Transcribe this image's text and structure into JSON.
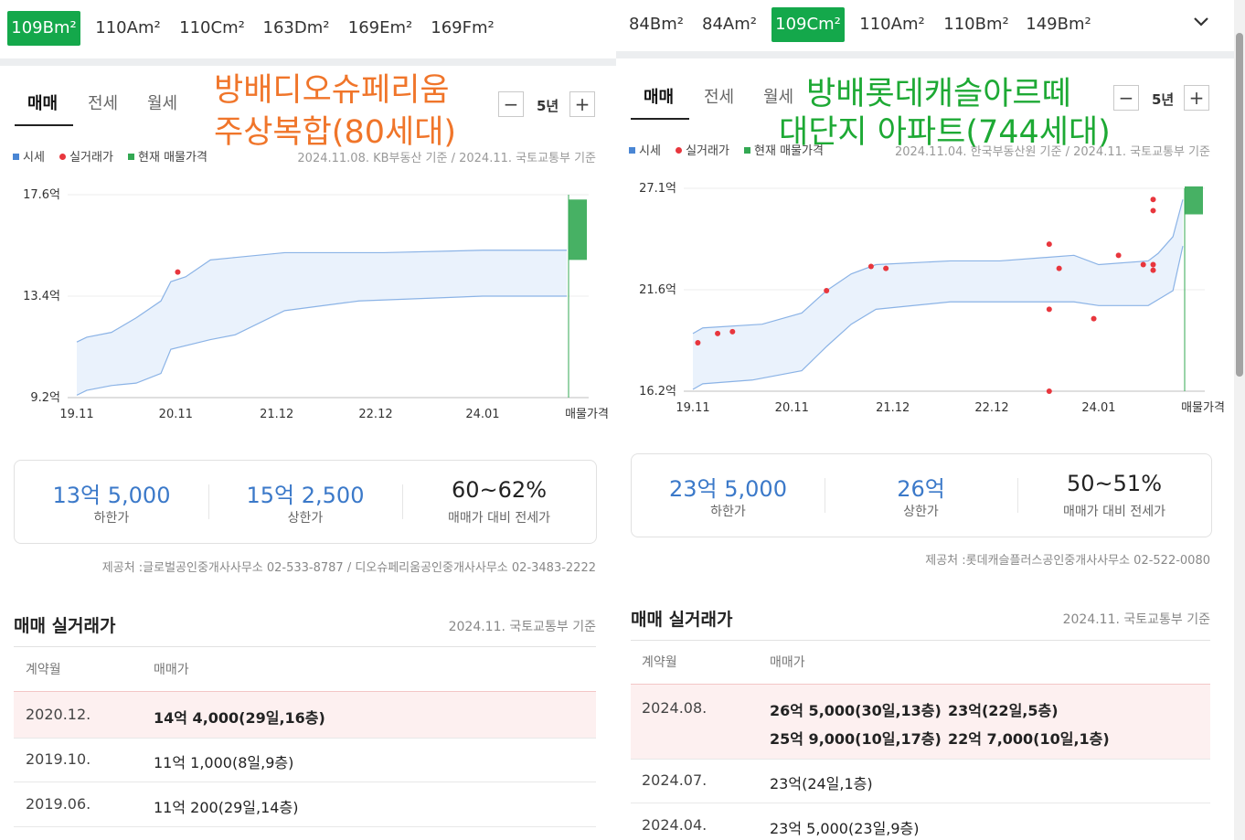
{
  "left": {
    "area_tabs": [
      "109Bm²",
      "110Am²",
      "110Cm²",
      "163Dm²",
      "169Em²",
      "169Fm²"
    ],
    "active_area": 0,
    "deal_tabs": [
      "매매",
      "전세",
      "월세"
    ],
    "period": "5년",
    "minus": "−",
    "plus": "+",
    "overlay_line1": "방배디오슈페리움",
    "overlay_line2": "주상복합(80세대)",
    "legend": {
      "market": "시세",
      "actual": "실거래가",
      "current": "현재 매물가격"
    },
    "basis": "2024.11.08. KB부동산 기준 / 2024.11. 국토교통부 기준",
    "colors": {
      "band_fill": "#eaf2fc",
      "band_line": "#8bb3e6",
      "dot": "#e8363d",
      "listing": "#33a853",
      "active_tab": "#14a84b"
    },
    "chart_data": {
      "type": "area",
      "x_labels": [
        "19.11",
        "20.11",
        "21.12",
        "22.12",
        "24.01",
        "매물가격"
      ],
      "y_labels": [
        "17.6억",
        "13.4억",
        "9.2억"
      ],
      "ylim": [
        9.2,
        17.6
      ],
      "band_upper": [
        [
          2019.9,
          11.5
        ],
        [
          2020.0,
          11.7
        ],
        [
          2020.25,
          11.9
        ],
        [
          2020.5,
          12.5
        ],
        [
          2020.75,
          13.2
        ],
        [
          2020.85,
          14.0
        ],
        [
          2021.0,
          14.2
        ],
        [
          2021.25,
          14.9
        ],
        [
          2021.5,
          15.0
        ],
        [
          2022.0,
          15.2
        ],
        [
          2023.0,
          15.2
        ],
        [
          2024.0,
          15.3
        ],
        [
          2024.85,
          15.3
        ]
      ],
      "band_lower": [
        [
          2019.9,
          9.3
        ],
        [
          2020.0,
          9.5
        ],
        [
          2020.25,
          9.7
        ],
        [
          2020.5,
          9.8
        ],
        [
          2020.75,
          10.2
        ],
        [
          2020.85,
          11.2
        ],
        [
          2021.25,
          11.6
        ],
        [
          2021.5,
          11.8
        ],
        [
          2022.0,
          12.8
        ],
        [
          2022.75,
          13.2
        ],
        [
          2024.0,
          13.4
        ],
        [
          2024.85,
          13.4
        ]
      ],
      "actual_deals": [
        [
          2020.92,
          14.4
        ]
      ],
      "listing_range": [
        14.9,
        17.4
      ]
    },
    "summary": [
      {
        "value": "13억 5,000",
        "label": "하한가"
      },
      {
        "value": "15억 2,500",
        "label": "상한가"
      },
      {
        "value": "60~62%",
        "label": "매매가 대비 전세가"
      }
    ],
    "provider": "제공처 :글로벌공인중개사사무소 02-533-8787 / 디오슈페리움공인중개사사무소 02-3483-2222",
    "section_title": "매매 실거래가",
    "section_basis": "2024.11. 국토교통부 기준",
    "headers": [
      "계약월",
      "매매가"
    ],
    "rows": [
      {
        "month": "2020.12.",
        "prices": [
          "14억 4,000(29일,16층)"
        ],
        "highlight": true
      },
      {
        "month": "2019.10.",
        "prices": [
          "11억 1,000(8일,9층)"
        ],
        "highlight": false
      },
      {
        "month": "2019.06.",
        "prices": [
          "11억 200(29일,14층)"
        ],
        "highlight": false
      }
    ]
  },
  "right": {
    "area_tabs": [
      "84Bm²",
      "84Am²",
      "109Cm²",
      "110Am²",
      "110Bm²",
      "149Bm²"
    ],
    "active_area": 2,
    "dropdown": "⌄",
    "deal_tabs": [
      "매매",
      "전세",
      "월세"
    ],
    "period": "5년",
    "minus": "−",
    "plus": "+",
    "overlay_line1": "방배롯데캐슬아르떼",
    "overlay_line2": "대단지 아파트(744세대)",
    "legend": {
      "market": "시세",
      "actual": "실거래가",
      "current": "현재 매물가격"
    },
    "basis": "2024.11.04. 한국부동산원 기준 / 2024.11. 국토교통부 기준",
    "chart_data": {
      "type": "area",
      "x_labels": [
        "19.11",
        "20.11",
        "21.12",
        "22.12",
        "24.01",
        "매물가격"
      ],
      "y_labels": [
        "27.1억",
        "21.6억",
        "16.2억"
      ],
      "ylim": [
        16.2,
        27.1
      ],
      "band_upper": [
        [
          2019.9,
          19.3
        ],
        [
          2020.0,
          19.6
        ],
        [
          2020.6,
          19.8
        ],
        [
          2021.0,
          20.4
        ],
        [
          2021.25,
          21.6
        ],
        [
          2021.5,
          22.5
        ],
        [
          2021.75,
          23.0
        ],
        [
          2022.5,
          23.2
        ],
        [
          2023.0,
          23.2
        ],
        [
          2023.75,
          23.5
        ],
        [
          2024.0,
          23.0
        ],
        [
          2024.5,
          23.2
        ],
        [
          2024.6,
          23.6
        ],
        [
          2024.75,
          24.5
        ],
        [
          2024.85,
          26.5
        ]
      ],
      "band_lower": [
        [
          2019.9,
          16.3
        ],
        [
          2020.0,
          16.6
        ],
        [
          2020.5,
          16.8
        ],
        [
          2021.0,
          17.3
        ],
        [
          2021.25,
          18.6
        ],
        [
          2021.5,
          19.8
        ],
        [
          2021.75,
          20.6
        ],
        [
          2022.5,
          21.0
        ],
        [
          2023.0,
          21.0
        ],
        [
          2023.75,
          21.0
        ],
        [
          2024.0,
          20.8
        ],
        [
          2024.5,
          20.8
        ],
        [
          2024.75,
          21.6
        ],
        [
          2024.85,
          24.0
        ]
      ],
      "actual_deals": [
        [
          2019.95,
          18.8
        ],
        [
          2020.15,
          19.3
        ],
        [
          2020.3,
          19.4
        ],
        [
          2021.25,
          21.6
        ],
        [
          2021.7,
          22.9
        ],
        [
          2021.85,
          22.8
        ],
        [
          2023.5,
          24.1
        ],
        [
          2023.5,
          20.6
        ],
        [
          2023.5,
          16.2
        ],
        [
          2023.6,
          22.8
        ],
        [
          2023.95,
          20.1
        ],
        [
          2024.2,
          23.5
        ],
        [
          2024.45,
          23.0
        ],
        [
          2024.55,
          26.5
        ],
        [
          2024.55,
          25.9
        ],
        [
          2024.55,
          23.0
        ],
        [
          2024.55,
          22.7
        ]
      ],
      "listing_range": [
        25.7,
        27.2
      ]
    },
    "summary": [
      {
        "value": "23억 5,000",
        "label": "하한가"
      },
      {
        "value": "26억",
        "label": "상한가"
      },
      {
        "value": "50~51%",
        "label": "매매가 대비 전세가"
      }
    ],
    "provider": "제공처 :롯데캐슬플러스공인중개사사무소 02-522-0080",
    "section_title": "매매 실거래가",
    "section_basis": "2024.11. 국토교통부 기준",
    "headers": [
      "계약월",
      "매매가"
    ],
    "rows": [
      {
        "month": "2024.08.",
        "prices": [
          "26억 5,000(30일,13층)",
          "23억(22일,5층)",
          "25억 9,000(10일,17층)",
          "22억 7,000(10일,1층)"
        ],
        "highlight": true
      },
      {
        "month": "2024.07.",
        "prices": [
          "23억(24일,1층)"
        ],
        "highlight": false
      },
      {
        "month": "2024.04.",
        "prices": [
          "23억 5,000(23일,9층)"
        ],
        "highlight": false
      }
    ]
  }
}
